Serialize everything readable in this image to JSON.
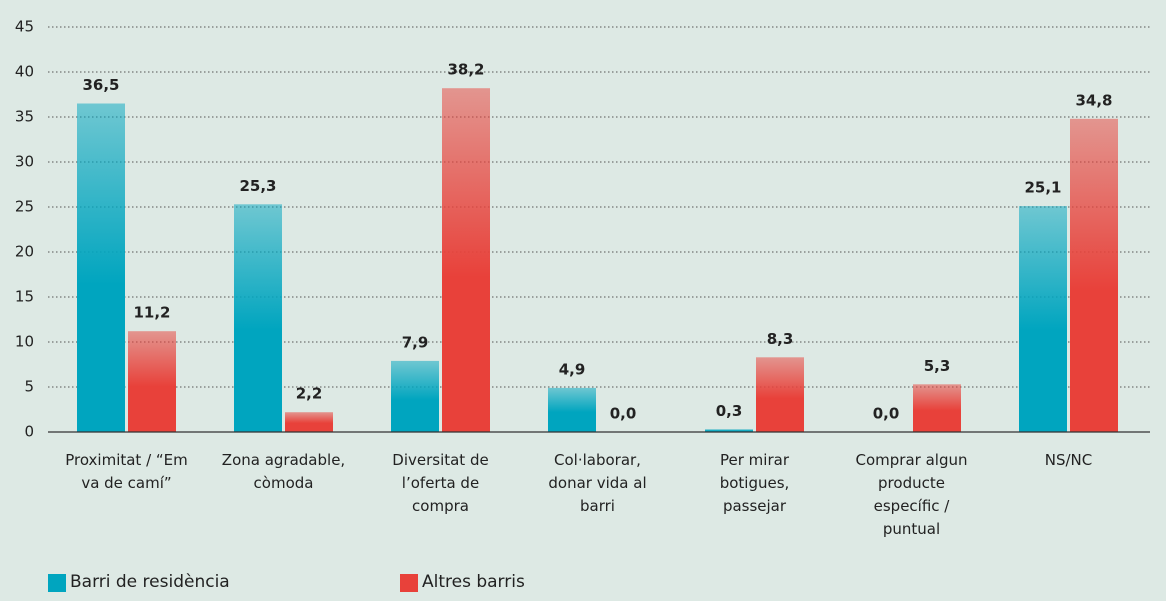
{
  "chart_data": {
    "type": "bar",
    "categories": [
      "Proximitat / “Em va de camí”",
      "Zona agradable, còmoda",
      "Diversitat de l’oferta de compra",
      "Col·laborar, donar vida al barri",
      "Per mirar botigues, passejar",
      "Comprar algun producte específic / puntual",
      "NS/NC"
    ],
    "series": [
      {
        "name": "Barri de residència",
        "color": "#00a5bf",
        "values": [
          36.5,
          25.3,
          7.9,
          4.9,
          0.3,
          0.0,
          25.1
        ],
        "value_labels": [
          "36,5",
          "25,3",
          "7,9",
          "4,9",
          "0,3",
          "0,0",
          "25,1"
        ]
      },
      {
        "name": "Altres barris",
        "color": "#e8413a",
        "values": [
          11.2,
          2.2,
          38.2,
          0.0,
          8.3,
          5.3,
          34.8
        ],
        "value_labels": [
          "11,2",
          "2,2",
          "38,2",
          "0,0",
          "8,3",
          "5,3",
          "34,8"
        ]
      }
    ],
    "ylim": [
      0,
      45
    ],
    "yticks": [
      0,
      5,
      10,
      15,
      20,
      25,
      30,
      35,
      40,
      45
    ],
    "grid": true
  }
}
